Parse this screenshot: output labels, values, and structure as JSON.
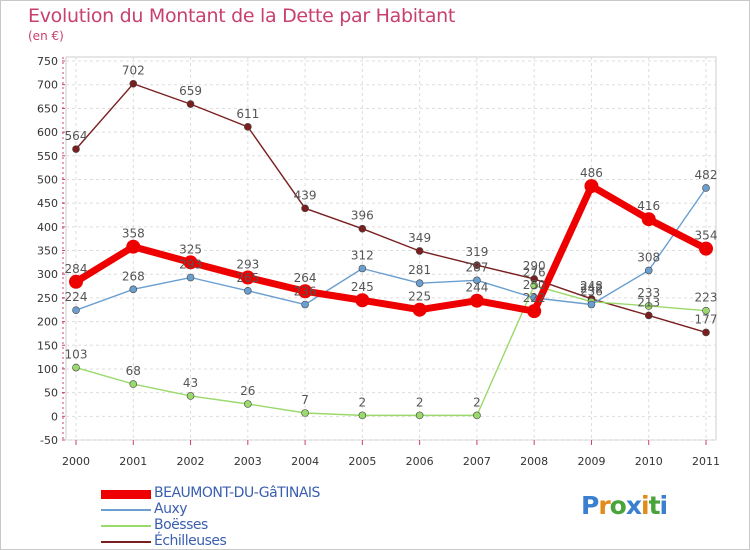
{
  "title": "Evolution du Montant de la Dette par Habitant",
  "subtitle": "(en €)",
  "logo": {
    "text": "Proxiti",
    "letter_colors": [
      "#3a7fd0",
      "#e28a1a",
      "#49a53a",
      "#3a7fd0",
      "#e28a1a",
      "#49a53a",
      "#3a7fd0"
    ]
  },
  "chart_data": {
    "type": "line",
    "x": [
      "2000",
      "2001",
      "2002",
      "2003",
      "2004",
      "2005",
      "2006",
      "2007",
      "2008",
      "2009",
      "2010",
      "2011"
    ],
    "ylim": [
      -50,
      750
    ],
    "yticks": [
      -50,
      0,
      50,
      100,
      150,
      200,
      250,
      300,
      350,
      400,
      450,
      500,
      550,
      600,
      650,
      700,
      750
    ],
    "grid": true,
    "legend_position": "bottom-left",
    "series": [
      {
        "name": "Échilleuses",
        "color": "#7a1f1f",
        "values": [
          564,
          702,
          659,
          611,
          439,
          396,
          349,
          319,
          290,
          248,
          213,
          177
        ],
        "labels": [
          "564",
          "702",
          "659",
          "611",
          "439",
          "396",
          "349",
          "319",
          "290",
          "248",
          "213",
          "177"
        ]
      },
      {
        "name": "Boësses",
        "color": "#9ad96b",
        "values": [
          103,
          68,
          43,
          26,
          7,
          2,
          2,
          2,
          276,
          242,
          233,
          223
        ],
        "labels": [
          "103",
          "68",
          "43",
          "26",
          "7",
          "2",
          "2",
          "2",
          "276",
          "242",
          "233",
          "223"
        ]
      },
      {
        "name": "Auxy",
        "color": "#6a9fd0",
        "values": [
          224,
          268,
          293,
          265,
          236,
          312,
          281,
          287,
          250,
          236,
          308,
          482
        ],
        "labels": [
          "224",
          "268",
          "293",
          "265",
          "236",
          "312",
          "281",
          "287",
          "250",
          "236",
          "308",
          "482"
        ]
      },
      {
        "name": "BEAUMONT-DU-GâTINAIS",
        "color": "#ee0000",
        "values": [
          284,
          358,
          325,
          293,
          264,
          245,
          225,
          244,
          222,
          486,
          416,
          354
        ],
        "labels": [
          "284",
          "358",
          "325",
          "293",
          "264",
          "245",
          "225",
          "244",
          "222",
          "486",
          "416",
          "354"
        ]
      }
    ],
    "legend_order": [
      "BEAUMONT-DU-GâTINAIS",
      "Auxy",
      "Boësses",
      "Échilleuses"
    ]
  }
}
